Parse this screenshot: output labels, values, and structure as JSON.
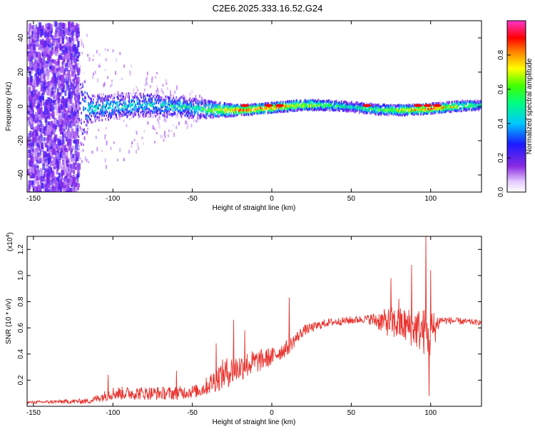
{
  "title": "C2E6.2025.333.16.52.G24",
  "top_panel": {
    "xlabel": "Height of straight line (km)",
    "ylabel": "Frequency (Hz)",
    "colorbar_label": "Normalized spectral amplitude"
  },
  "bottom_panel": {
    "xlabel": "Height of straight line (km)",
    "ylabel": "SNR (10 * v/v)",
    "y_multiplier": "(x10",
    "y_multiplier_exp": "4",
    "y_multiplier_close": ")"
  },
  "colors": {
    "snr_line": "#e8322d",
    "axis": "#000000"
  },
  "chart_data": [
    {
      "type": "heatmap",
      "title": "C2E6.2025.333.16.52.G24",
      "xlabel": "Height of straight line (km)",
      "ylabel": "Frequency (Hz)",
      "xlim": [
        -154,
        132
      ],
      "ylim": [
        -50,
        50
      ],
      "x_ticks": [
        -150,
        -100,
        -50,
        0,
        50,
        100
      ],
      "y_ticks": [
        -40,
        -20,
        0,
        20,
        40
      ],
      "colorbar": {
        "label": "Normalized spectral amplitude",
        "range": [
          0,
          1
        ],
        "ticks": [
          0.0,
          0.2,
          0.4,
          0.6,
          0.8
        ],
        "colormap": "rainbow (white-violet-blue-cyan-green-yellow-red-magenta)"
      },
      "description_points": [
        {
          "x": -154,
          "spread_hz": 50,
          "intensity": 0.15
        },
        {
          "x": -125,
          "spread_hz": 50,
          "intensity": 0.15
        },
        {
          "x": -115,
          "spread_hz": 8,
          "intensity": 0.45
        },
        {
          "x": -80,
          "spread_hz": 7,
          "intensity": 0.45
        },
        {
          "x": -50,
          "spread_hz": 6,
          "intensity": 0.5
        },
        {
          "x": -20,
          "spread_hz": 3,
          "intensity": 0.9
        },
        {
          "x": 0,
          "spread_hz": 3,
          "intensity": 0.9
        },
        {
          "x": 50,
          "spread_hz": 3,
          "intensity": 0.5
        },
        {
          "x": 100,
          "spread_hz": 3,
          "intensity": 0.9
        },
        {
          "x": 132,
          "spread_hz": 3,
          "intensity": 0.5
        }
      ],
      "grid": false
    },
    {
      "type": "line",
      "xlabel": "Height of straight line (km)",
      "ylabel": "SNR (10 * v/v)",
      "xlim": [
        -154,
        132
      ],
      "ylim": [
        0,
        1.3
      ],
      "y_scale_note": "x10^4",
      "x_ticks": [
        -150,
        -100,
        -50,
        0,
        50,
        100
      ],
      "y_ticks": [
        0.2,
        0.4,
        0.6,
        0.8,
        1.0,
        1.2
      ],
      "grid": false,
      "series": [
        {
          "color": "#e8322d",
          "envelope": [
            {
              "x": -154,
              "mean": 0.03,
              "noise": 0.01
            },
            {
              "x": -115,
              "mean": 0.04,
              "noise": 0.02
            },
            {
              "x": -100,
              "mean": 0.1,
              "noise": 0.05
            },
            {
              "x": -80,
              "mean": 0.1,
              "noise": 0.05
            },
            {
              "x": -60,
              "mean": 0.1,
              "noise": 0.05
            },
            {
              "x": -45,
              "mean": 0.12,
              "noise": 0.05
            },
            {
              "x": -30,
              "mean": 0.25,
              "noise": 0.12
            },
            {
              "x": -15,
              "mean": 0.32,
              "noise": 0.1
            },
            {
              "x": 0,
              "mean": 0.38,
              "noise": 0.07
            },
            {
              "x": 10,
              "mean": 0.45,
              "noise": 0.06
            },
            {
              "x": 20,
              "mean": 0.58,
              "noise": 0.04
            },
            {
              "x": 35,
              "mean": 0.64,
              "noise": 0.03
            },
            {
              "x": 60,
              "mean": 0.67,
              "noise": 0.03
            },
            {
              "x": 75,
              "mean": 0.64,
              "noise": 0.12
            },
            {
              "x": 90,
              "mean": 0.6,
              "noise": 0.15
            },
            {
              "x": 100,
              "mean": 0.55,
              "noise": 0.2
            },
            {
              "x": 106,
              "mean": 0.66,
              "noise": 0.03
            },
            {
              "x": 132,
              "mean": 0.64,
              "noise": 0.02
            }
          ],
          "spikes": [
            {
              "x": -103,
              "y": 0.24
            },
            {
              "x": -60,
              "y": 0.27
            },
            {
              "x": -35,
              "y": 0.48
            },
            {
              "x": -24,
              "y": 0.66
            },
            {
              "x": -17,
              "y": 0.58
            },
            {
              "x": 11,
              "y": 0.83
            },
            {
              "x": 75,
              "y": 0.98
            },
            {
              "x": 80,
              "y": 0.82
            },
            {
              "x": 88,
              "y": 1.08
            },
            {
              "x": 97,
              "y": 1.3
            },
            {
              "x": 99,
              "y": 0.08
            },
            {
              "x": 100,
              "y": 1.04
            }
          ]
        }
      ]
    }
  ]
}
